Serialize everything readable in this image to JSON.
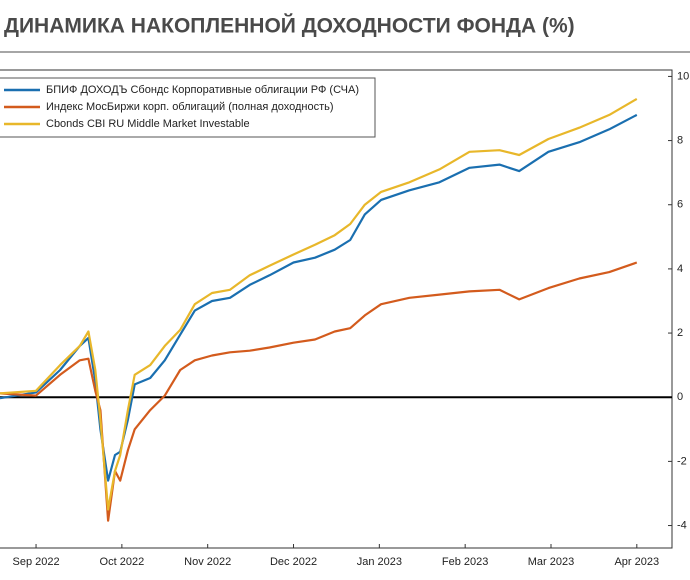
{
  "chart_data": {
    "type": "line",
    "title": "ДИНАМИКА НАКОПЛЕННОЙ ДОХОДНОСТИ ФОНДА (%)",
    "x": [
      -0.42,
      0,
      0.28,
      0.51,
      0.61,
      0.69,
      0.75,
      0.84,
      0.92,
      0.98,
      1.07,
      1.15,
      1.33,
      1.5,
      1.68,
      1.85,
      2.05,
      2.26,
      2.49,
      2.72,
      3.0,
      3.25,
      3.48,
      3.66,
      3.83,
      4.02,
      4.35,
      4.7,
      5.05,
      5.4,
      5.63,
      5.97,
      6.33,
      6.68,
      7.0
    ],
    "series": [
      {
        "name": "БПИФ ДОХОДЪ Сбондс Корпоративные облигации РФ (СЧА)",
        "color": "#1a6fb0",
        "values": [
          -0.03,
          0.15,
          0.85,
          1.6,
          1.85,
          0.5,
          -1.0,
          -2.6,
          -1.8,
          -1.7,
          -0.7,
          0.4,
          0.6,
          1.15,
          1.95,
          2.7,
          3.0,
          3.1,
          3.5,
          3.8,
          4.2,
          4.35,
          4.6,
          4.9,
          5.7,
          6.15,
          6.45,
          6.7,
          7.15,
          7.25,
          7.05,
          7.65,
          7.95,
          8.35,
          8.8
        ]
      },
      {
        "name": "Индекс МосБиржи корп. облигаций (полная доходность)",
        "color": "#d35b1d",
        "values": [
          0.12,
          0.05,
          0.7,
          1.15,
          1.2,
          0.2,
          -0.4,
          -3.85,
          -2.3,
          -2.6,
          -1.65,
          -1.0,
          -0.4,
          0.05,
          0.85,
          1.15,
          1.3,
          1.4,
          1.45,
          1.55,
          1.7,
          1.8,
          2.05,
          2.15,
          2.55,
          2.9,
          3.1,
          3.2,
          3.3,
          3.35,
          3.05,
          3.4,
          3.7,
          3.9,
          4.2
        ]
      },
      {
        "name": "Cbonds CBI RU Middle Market Investable",
        "color": "#e8b72a",
        "values": [
          0.12,
          0.2,
          1.0,
          1.6,
          2.05,
          0.85,
          -0.7,
          -3.5,
          -2.3,
          -1.8,
          -0.4,
          0.7,
          1.0,
          1.6,
          2.1,
          2.9,
          3.25,
          3.35,
          3.8,
          4.1,
          4.45,
          4.75,
          5.05,
          5.4,
          6.0,
          6.4,
          6.7,
          7.1,
          7.65,
          7.7,
          7.55,
          8.05,
          8.4,
          8.8,
          9.3
        ]
      }
    ],
    "xlim": [
      -0.42,
      7.41
    ],
    "xticks": [
      {
        "value": 0,
        "label": "Sep 2022"
      },
      {
        "value": 1,
        "label": "Oct 2022"
      },
      {
        "value": 2,
        "label": "Nov 2022"
      },
      {
        "value": 3,
        "label": "Dec 2022"
      },
      {
        "value": 4,
        "label": "Jan 2023"
      },
      {
        "value": 5,
        "label": "Feb 2023"
      },
      {
        "value": 6,
        "label": "Mar 2023"
      },
      {
        "value": 7,
        "label": "Apr 2023"
      }
    ],
    "ylim": [
      -4.7,
      10.2
    ],
    "yticks": [
      -4,
      -2,
      0,
      2,
      4,
      6,
      8,
      10
    ],
    "zero_line": true,
    "legend": "upper left"
  }
}
